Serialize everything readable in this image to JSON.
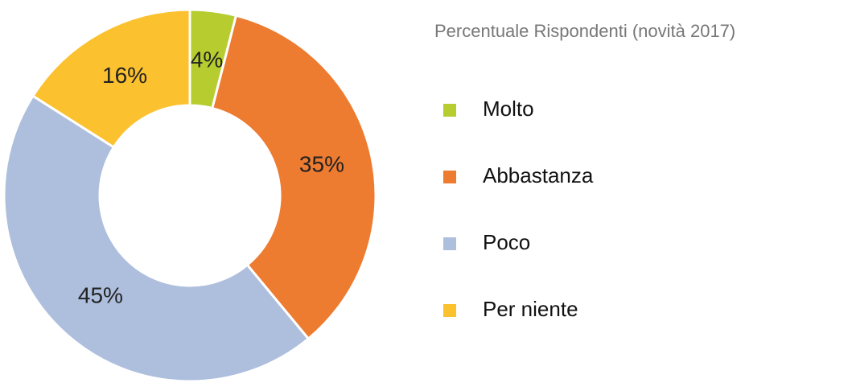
{
  "chart_data": {
    "type": "donut",
    "title": "Percentuale Rispondenti (novità 2017)",
    "categories": [
      "Molto",
      "Abbastanza",
      "Poco",
      "Per niente"
    ],
    "values": [
      4,
      35,
      45,
      16
    ],
    "value_labels": [
      "4%",
      "35%",
      "45%",
      "16%"
    ],
    "colors": [
      "#b6cc2f",
      "#ed7b30",
      "#adbfdd",
      "#fbc12e"
    ]
  }
}
